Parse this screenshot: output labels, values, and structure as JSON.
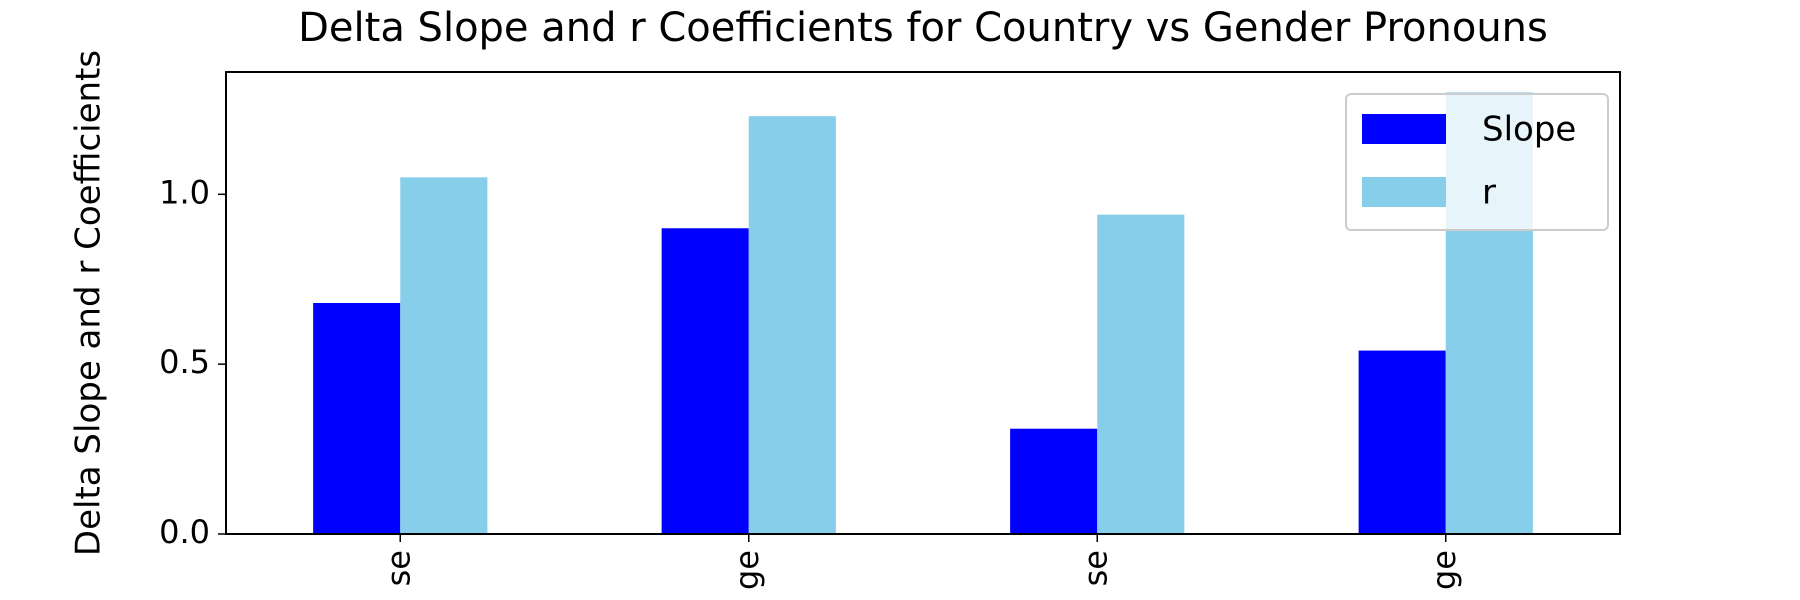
{
  "chart_data": {
    "type": "bar",
    "title": "Delta Slope and r Coefficients for Country vs Gender Pronouns",
    "y_label": "Delta Slope and r Coefficients",
    "categories": [
      "se",
      "ge",
      "se",
      "ge"
    ],
    "series": [
      {
        "name": "Slope",
        "color": "#0000ff",
        "values": [
          0.68,
          0.9,
          0.31,
          0.54
        ]
      },
      {
        "name": "r",
        "color": "#87ceeb",
        "values": [
          1.05,
          1.23,
          0.94,
          1.3
        ]
      }
    ],
    "ylim": [
      0,
      1.36
    ],
    "yticks": [
      {
        "value": 0,
        "label": "0.0"
      },
      {
        "value": 0.5,
        "label": "0.5"
      },
      {
        "value": 1,
        "label": "1.0"
      }
    ],
    "legend": "upper right"
  }
}
